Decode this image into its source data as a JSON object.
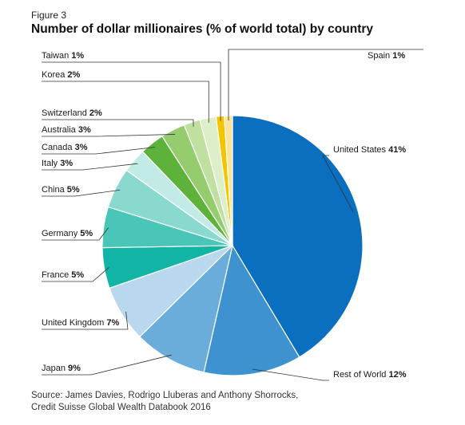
{
  "figure_label": "Figure 3",
  "chart_data": {
    "type": "pie",
    "title": "Number of dollar millionaires (% of world total) by country",
    "slices": [
      {
        "label": "United States",
        "value": 41,
        "pct_text": "41%",
        "color": "#0b6fbf"
      },
      {
        "label": "Rest of World",
        "value": 12,
        "pct_text": "12%",
        "color": "#3d92cf"
      },
      {
        "label": "Japan",
        "value": 9,
        "pct_text": "9%",
        "color": "#6aaddb"
      },
      {
        "label": "United Kingdom",
        "value": 7,
        "pct_text": "7%",
        "color": "#b9d8ee"
      },
      {
        "label": "France",
        "value": 5,
        "pct_text": "5%",
        "color": "#12b5a5"
      },
      {
        "label": "Germany",
        "value": 5,
        "pct_text": "5%",
        "color": "#49c6b7"
      },
      {
        "label": "China",
        "value": 5,
        "pct_text": "5%",
        "color": "#8ad9cf"
      },
      {
        "label": "Italy",
        "value": 3,
        "pct_text": "3%",
        "color": "#c2ebe6"
      },
      {
        "label": "Canada",
        "value": 3,
        "pct_text": "3%",
        "color": "#5db33a"
      },
      {
        "label": "Australia",
        "value": 3,
        "pct_text": "3%",
        "color": "#94cc6e"
      },
      {
        "label": "Switzerland",
        "value": 2,
        "pct_text": "2%",
        "color": "#bfe09f"
      },
      {
        "label": "Korea",
        "value": 2,
        "pct_text": "2%",
        "color": "#dcefc9"
      },
      {
        "label": "Taiwan",
        "value": 1,
        "pct_text": "1%",
        "color": "#f5c400"
      },
      {
        "label": "Spain",
        "value": 1,
        "pct_text": "1%",
        "color": "#fbe49a"
      }
    ]
  },
  "source_lines": [
    "Source: James Davies, Rodrigo Lluberas and Anthony Shorrocks,",
    "Credit Suisse Global Wealth Databook 2016"
  ]
}
